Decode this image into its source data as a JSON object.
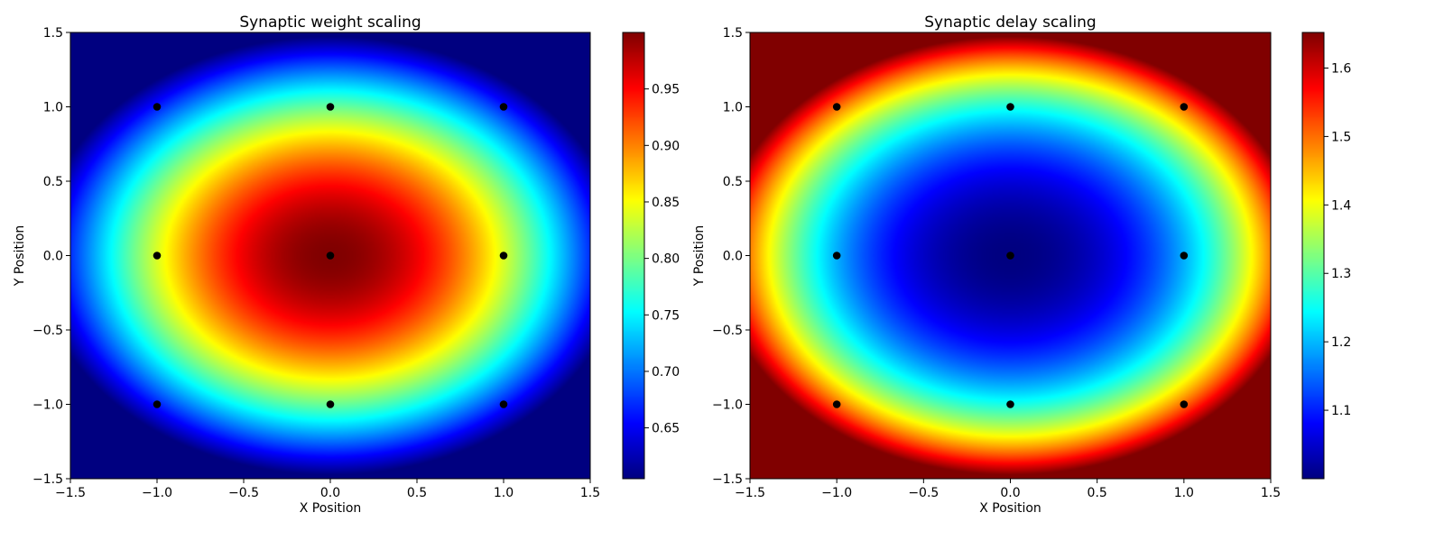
{
  "chart_data": [
    {
      "type": "heatmap",
      "title": "Synaptic weight scaling",
      "xlabel": "X Position",
      "ylabel": "Y Position",
      "xlim": [
        -1.5,
        1.5
      ],
      "ylim": [
        -1.5,
        1.5
      ],
      "xticks": [
        -1.5,
        -1.0,
        -0.5,
        0.0,
        0.5,
        1.0,
        1.5
      ],
      "yticks": [
        -1.5,
        -1.0,
        -0.5,
        0.0,
        0.5,
        1.0,
        1.5
      ],
      "xtick_labels": [
        "−1.5",
        "−1.0",
        "−0.5",
        "0.0",
        "0.5",
        "1.0",
        "1.5"
      ],
      "ytick_labels": [
        "−1.5",
        "−1.0",
        "−0.5",
        "0.0",
        "0.5",
        "1.0",
        "1.5"
      ],
      "colormap": "jet",
      "field": {
        "center": [
          0.0,
          0.0
        ],
        "peak": 1.0,
        "sigma_x": 1.68,
        "sigma_y": 1.47,
        "form": "peak * exp(-(x^2/(2*sigma_x^2) + y^2/(2*sigma_y^2)))"
      },
      "colorbar": {
        "range": [
          0.605,
          1.0
        ],
        "ticks": [
          0.65,
          0.7,
          0.75,
          0.8,
          0.85,
          0.9,
          0.95
        ],
        "tick_labels": [
          "0.65",
          "0.70",
          "0.75",
          "0.80",
          "0.85",
          "0.90",
          "0.95"
        ]
      },
      "points": [
        [
          -1,
          1
        ],
        [
          0,
          1
        ],
        [
          1,
          1
        ],
        [
          -1,
          0
        ],
        [
          0,
          0
        ],
        [
          1,
          0
        ],
        [
          -1,
          -1
        ],
        [
          0,
          -1
        ],
        [
          1,
          -1
        ]
      ],
      "point_color": "#000000"
    },
    {
      "type": "heatmap",
      "title": "Synaptic delay scaling",
      "xlabel": "X Position",
      "ylabel": "Y Position",
      "xlim": [
        -1.5,
        1.5
      ],
      "ylim": [
        -1.5,
        1.5
      ],
      "xticks": [
        -1.5,
        -1.0,
        -0.5,
        0.0,
        0.5,
        1.0,
        1.5
      ],
      "yticks": [
        -1.5,
        -1.0,
        -0.5,
        0.0,
        0.5,
        1.0,
        1.5
      ],
      "xtick_labels": [
        "−1.5",
        "−1.0",
        "−0.5",
        "0.0",
        "0.5",
        "1.0",
        "1.5"
      ],
      "ytick_labels": [
        "−1.5",
        "−1.0",
        "−0.5",
        "0.0",
        "0.5",
        "1.0",
        "1.5"
      ],
      "colormap": "jet",
      "field": {
        "center": [
          0.0,
          0.0
        ],
        "peak": 1.0,
        "sigma_x": 1.68,
        "sigma_y": 1.47,
        "form": "1 / (peak * exp(-(x^2/(2*sigma_x^2) + y^2/(2*sigma_y^2))))"
      },
      "colorbar": {
        "range": [
          1.0,
          1.652
        ],
        "ticks": [
          1.1,
          1.2,
          1.3,
          1.4,
          1.5,
          1.6
        ],
        "tick_labels": [
          "1.1",
          "1.2",
          "1.3",
          "1.4",
          "1.5",
          "1.6"
        ]
      },
      "points": [
        [
          -1,
          1
        ],
        [
          0,
          1
        ],
        [
          1,
          1
        ],
        [
          -1,
          0
        ],
        [
          0,
          0
        ],
        [
          1,
          0
        ],
        [
          -1,
          -1
        ],
        [
          0,
          -1
        ],
        [
          1,
          -1
        ]
      ],
      "point_color": "#000000"
    }
  ]
}
